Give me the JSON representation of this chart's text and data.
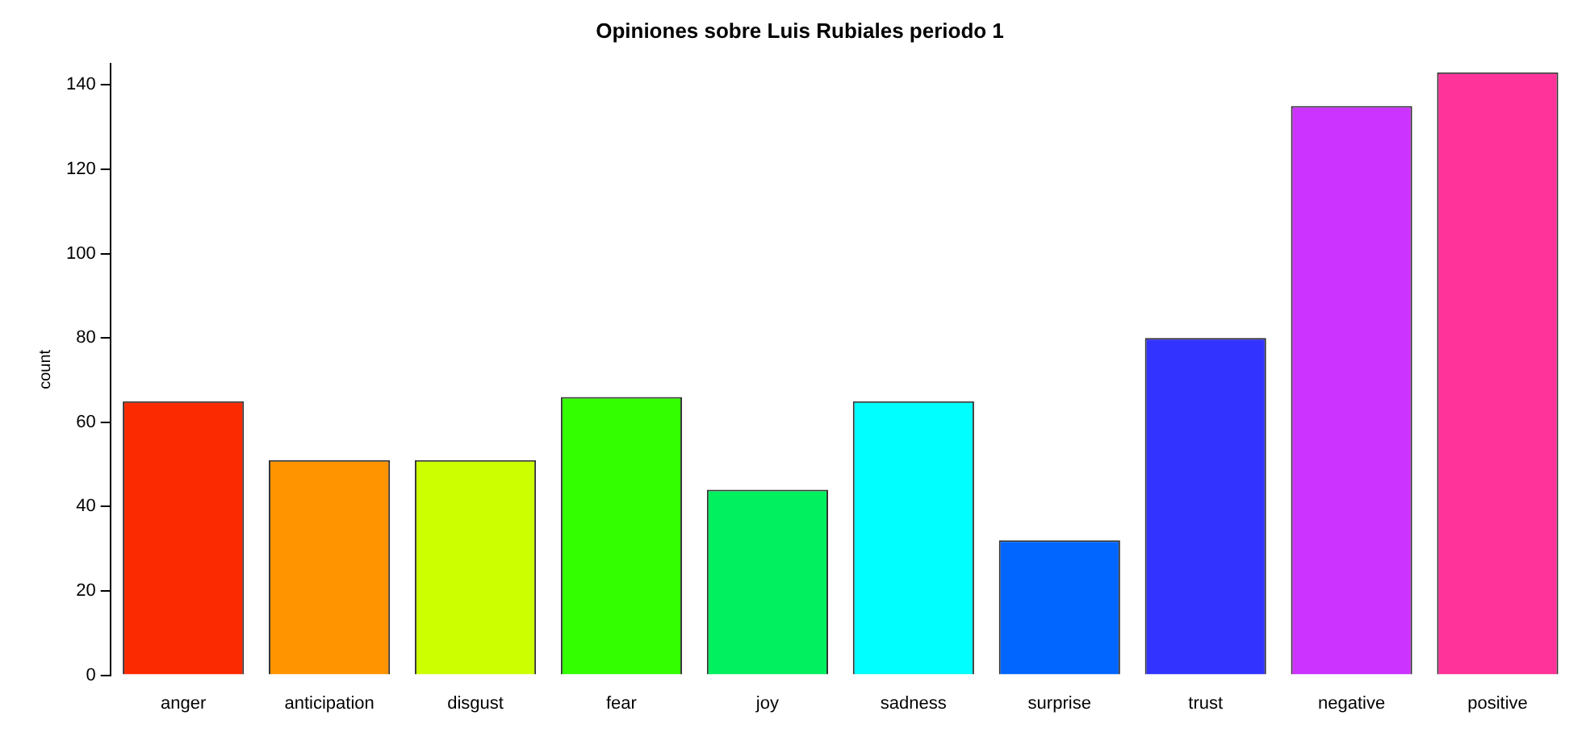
{
  "chart_data": {
    "type": "bar",
    "title": "Opiniones sobre Luis Rubiales periodo 1",
    "ylabel": "count",
    "categories": [
      "anger",
      "anticipation",
      "disgust",
      "fear",
      "joy",
      "sadness",
      "surprise",
      "trust",
      "negative",
      "positive"
    ],
    "values": [
      65,
      51,
      51,
      66,
      44,
      65,
      32,
      80,
      135,
      143
    ],
    "colors": [
      "#fc2a00",
      "#ff9400",
      "#ccff00",
      "#33ff00",
      "#00f060",
      "#00ffff",
      "#0066ff",
      "#3333ff",
      "#cc33ff",
      "#ff3399"
    ],
    "ylim": [
      0,
      145
    ],
    "yticks": [
      0,
      20,
      40,
      60,
      80,
      100,
      120,
      140
    ],
    "grid": false,
    "legend": false
  }
}
